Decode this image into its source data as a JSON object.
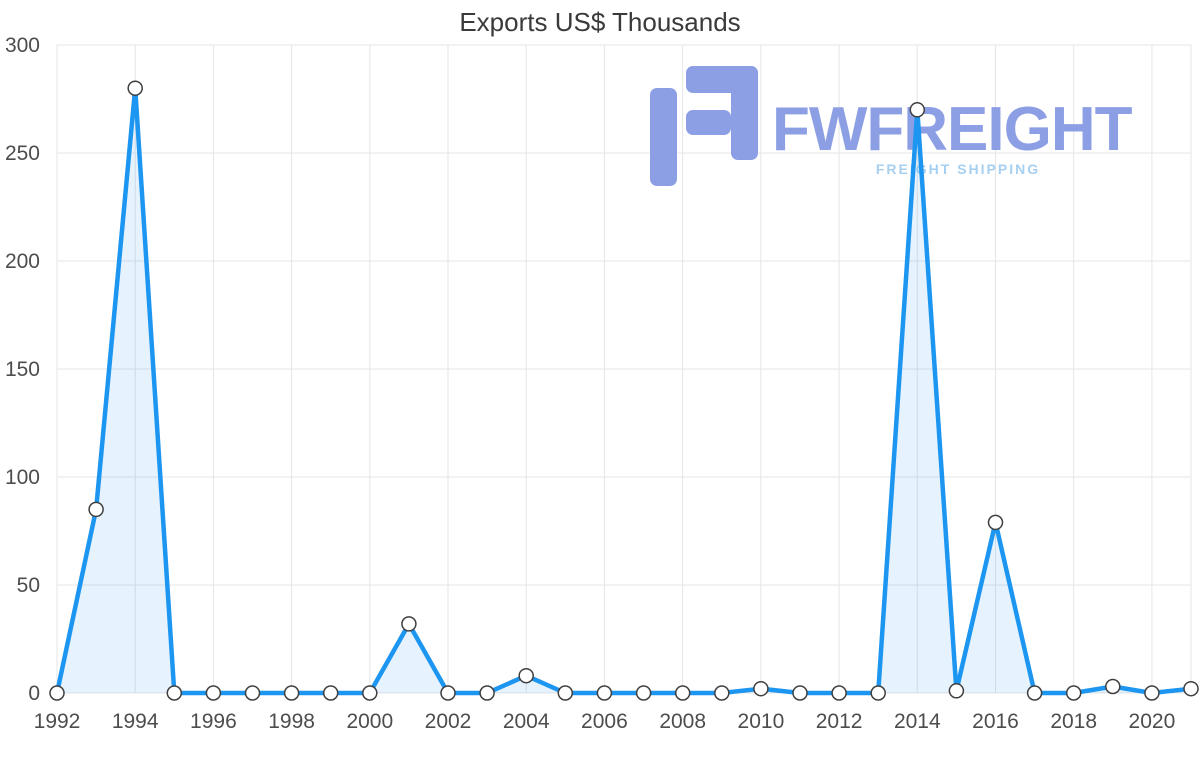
{
  "watermark": {
    "brand": "FWFREIGHT",
    "tagline": "FREIGHT SHIPPING",
    "brand_color": "#8d9fe4",
    "tagline_color": "#a6cff0"
  },
  "chart_data": {
    "type": "area",
    "title": "Exports US$ Thousands",
    "xlabel": "",
    "ylabel": "",
    "x": [
      1992,
      1993,
      1994,
      1995,
      1996,
      1997,
      1998,
      1999,
      2000,
      2001,
      2002,
      2003,
      2004,
      2005,
      2006,
      2007,
      2008,
      2009,
      2010,
      2011,
      2012,
      2013,
      2014,
      2015,
      2016,
      2017,
      2018,
      2019,
      2020,
      2021
    ],
    "values": [
      0,
      85,
      280,
      0,
      0,
      0,
      0,
      0,
      0,
      32,
      0,
      0,
      8,
      0,
      0,
      0,
      0,
      0,
      2,
      0,
      0,
      0,
      270,
      1,
      79,
      0,
      0,
      3,
      0,
      2
    ],
    "series_name": "Exports US$ Thousands",
    "xlim": [
      1992,
      2021
    ],
    "ylim": [
      0,
      300
    ],
    "yticks": [
      0,
      50,
      100,
      150,
      200,
      250,
      300
    ],
    "xticks": [
      1992,
      1994,
      1996,
      1998,
      2000,
      2002,
      2004,
      2006,
      2008,
      2010,
      2012,
      2014,
      2016,
      2018,
      2020
    ],
    "grid": true,
    "legend": "none",
    "line_color": "#1d96f2",
    "fill_opacity": 0.11,
    "grid_color": "#e5e5e5",
    "axis_label_color": "#4d4d4d",
    "marker": {
      "fill": "#ffffff",
      "stroke": "#3f3f3f",
      "radius": 7
    }
  }
}
